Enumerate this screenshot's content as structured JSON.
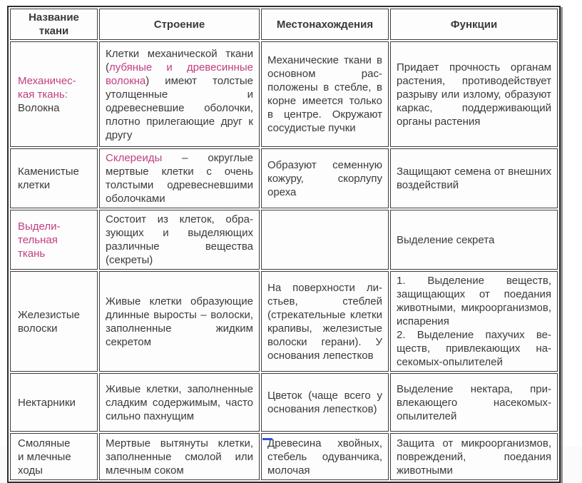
{
  "colors": {
    "accent_pink": "#c23e80",
    "text": "#3a3a3a",
    "border": "#3d3d3d",
    "blue_mark": "#2f55d4"
  },
  "table": {
    "headers": [
      "Название ткани",
      "Строение",
      "Местонахождения",
      "Функции"
    ],
    "rows": [
      {
        "name": [
          [
            {
              "t": "Механичес-",
              "pink": true
            }
          ],
          [
            {
              "t": "кая ткань:",
              "pink": true
            }
          ],
          [
            {
              "t": "Волокна"
            }
          ]
        ],
        "structure": [
          [
            {
              "t": "Клетки механической ткани ("
            },
            {
              "t": "лубяные и древе­синные волокна",
              "pink": true
            },
            {
              "t": ") имеют толстые утолщенные и одревесневшие оболоч­ки, плотно прилегающие друг к другу"
            }
          ]
        ],
        "location": [
          [
            {
              "t": "Механические тка­ни в основном рас­положены в стебле, в корне имеется только в центре. Окружают сосуди­стые пучки"
            }
          ]
        ],
        "function": [
          [
            {
              "t": "Придает прочность органам растения, противодейству­ет разрыву или излому, об­разуют каркас, поддержи­вающий органы растения"
            }
          ]
        ]
      },
      {
        "name": [
          [
            {
              "t": "Каменистые"
            }
          ],
          [
            {
              "t": "клетки"
            }
          ]
        ],
        "structure": [
          [
            {
              "t": "Склереиды",
              "pink": true
            },
            {
              "t": " – округлые мертвые клетки с очень толстыми одревеснев­шими оболочками"
            }
          ]
        ],
        "location": [
          [
            {
              "t": "Образуют семен­ную кожуру, скор­лупу ореха"
            }
          ]
        ],
        "function": [
          [
            {
              "t": "Защищают семена от внешних воздействий"
            }
          ]
        ]
      },
      {
        "name": [
          [
            {
              "t": "Выдели-",
              "pink": true
            }
          ],
          [
            {
              "t": "тельная",
              "pink": true
            }
          ],
          [
            {
              "t": "ткань",
              "pink": true
            }
          ]
        ],
        "structure": [
          [
            {
              "t": "Состоит из клеток, обра­зующих и выделяющих различные вещества (секреты)"
            }
          ]
        ],
        "location": [],
        "function": [
          [
            {
              "t": "Выделение секрета"
            }
          ]
        ]
      },
      {
        "name": [
          [
            {
              "t": "Железистые"
            }
          ],
          [
            {
              "t": "волоски"
            }
          ]
        ],
        "structure": [
          [
            {
              "t": "Живые клетки образую­щие длинные выросты – волоски, заполненные жидким секретом"
            }
          ]
        ],
        "location": [
          [
            {
              "t": "На поверхности ли­стьев, стеблей (стрекательные клетки крапивы, железистые волос­ки герани). У осно­вания лепестков"
            }
          ]
        ],
        "function": [
          [
            {
              "t": "1. Выделение веществ, защищающих от поедания животными, микроорганиз­мов, испарения"
            }
          ],
          [
            {
              "t": "2. Выделение пахучих ве­ществ, привлекающих на­секомых-опылителей"
            }
          ]
        ]
      },
      {
        "name": [
          [
            {
              "t": "Нектарники"
            }
          ]
        ],
        "structure": [
          [
            {
              "t": "Живые клетки, запол­ненные сладким содер­жимым, часто сильно пахнущим"
            }
          ]
        ],
        "location": [
          [
            {
              "t": "Цветок (чаще всего у основания лепе­стков)"
            }
          ]
        ],
        "function": [
          [
            {
              "t": "Выделение нектара, при­влекающего насекомых-опылителей"
            }
          ]
        ]
      },
      {
        "name": [
          [
            {
              "t": "Смоляные"
            }
          ],
          [
            {
              "t": "и млечные"
            }
          ],
          [
            {
              "t": "ходы"
            }
          ]
        ],
        "structure": [
          [
            {
              "t": "Мертвые вытянуты клет­ки, заполненные смолой или млечным соком"
            }
          ]
        ],
        "location": [
          [
            {
              "t": "Древесина хвой­ных, стебель оду­ванчика, молочая"
            }
          ]
        ],
        "function": [
          [
            {
              "t": "Защита от микроорганиз­мов, повреждений, поеда­ния животными"
            }
          ]
        ]
      }
    ]
  }
}
